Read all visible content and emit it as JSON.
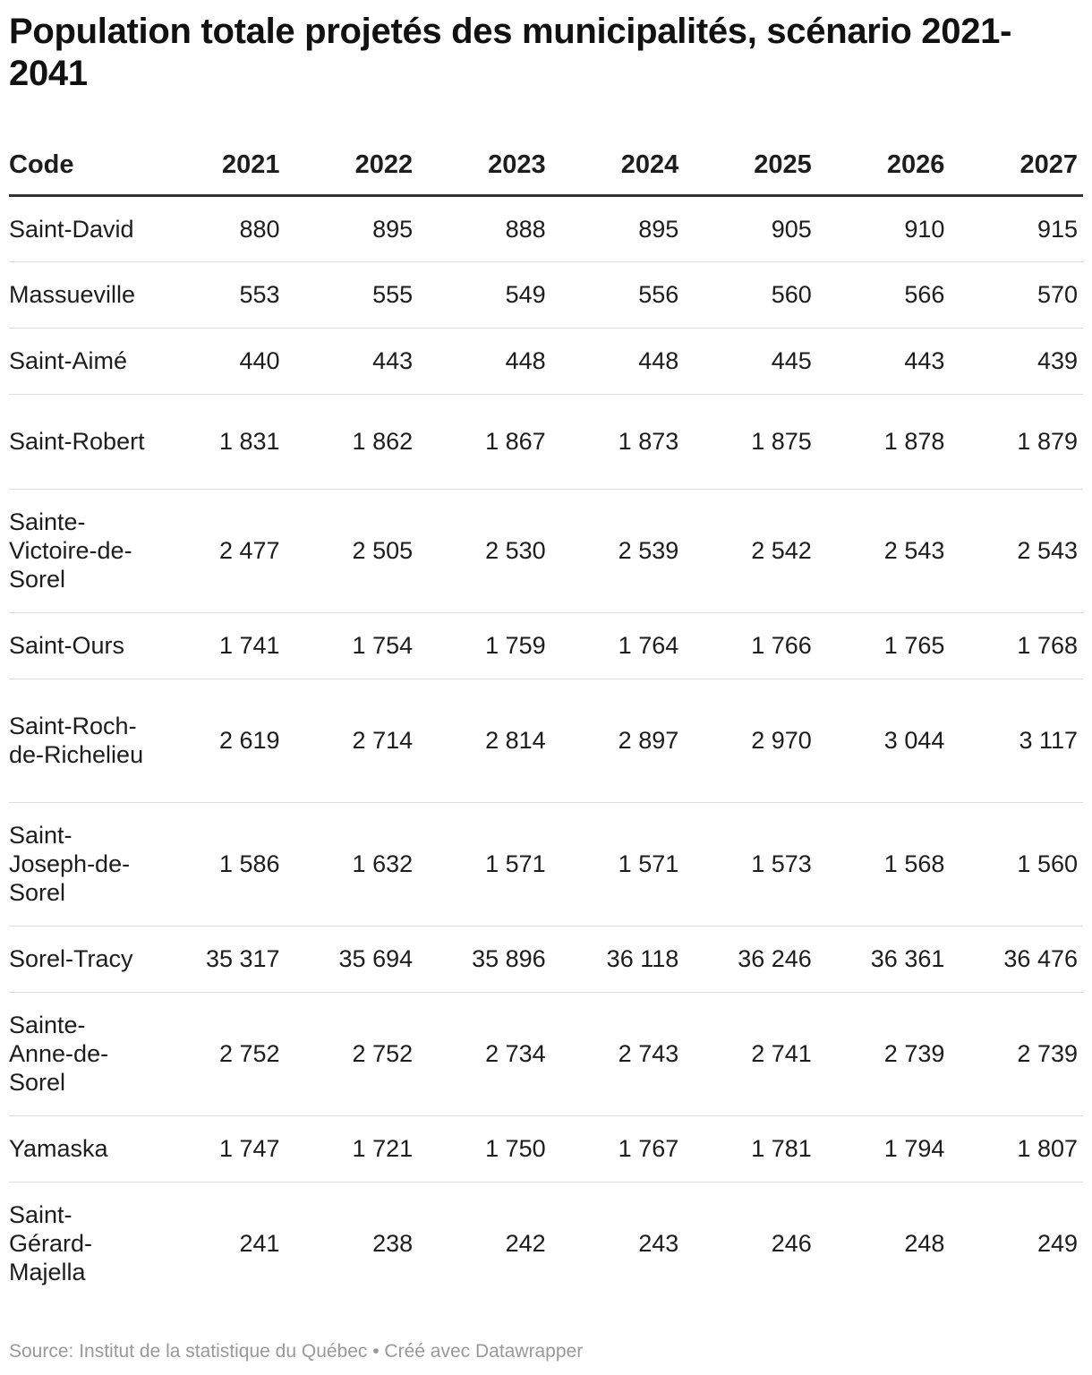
{
  "title": "Population totale projetés des municipalités, scénario 2021-2041",
  "chart_data": {
    "type": "table",
    "title": "Population totale projetés des municipalités, scénario 2021-2041",
    "columns": [
      "Code",
      "2021",
      "2022",
      "2023",
      "2024",
      "2025",
      "2026",
      "2027"
    ],
    "rows": [
      {
        "name": "Saint-David",
        "lines": 1,
        "values": [
          "880",
          "895",
          "888",
          "895",
          "905",
          "910",
          "915"
        ]
      },
      {
        "name": "Massueville",
        "lines": 1,
        "values": [
          "553",
          "555",
          "549",
          "556",
          "560",
          "566",
          "570"
        ]
      },
      {
        "name": "Saint-Aimé",
        "lines": 1,
        "values": [
          "440",
          "443",
          "448",
          "448",
          "445",
          "443",
          "439"
        ]
      },
      {
        "name": "Saint-Robert",
        "lines": 2,
        "values": [
          "1 831",
          "1 862",
          "1 867",
          "1 873",
          "1 875",
          "1 878",
          "1 879"
        ]
      },
      {
        "name": "Sainte-Victoire-de-Sorel",
        "lines": 3,
        "values": [
          "2 477",
          "2 505",
          "2 530",
          "2 539",
          "2 542",
          "2 543",
          "2 543"
        ]
      },
      {
        "name": "Saint-Ours",
        "lines": 1,
        "values": [
          "1 741",
          "1 754",
          "1 759",
          "1 764",
          "1 766",
          "1 765",
          "1 768"
        ]
      },
      {
        "name": "Saint-Roch-de-Richelieu",
        "lines": 3,
        "values": [
          "2 619",
          "2 714",
          "2 814",
          "2 897",
          "2 970",
          "3 044",
          "3 117"
        ]
      },
      {
        "name": "Saint-Joseph-de-Sorel",
        "lines": 3,
        "values": [
          "1 586",
          "1 632",
          "1 571",
          "1 571",
          "1 573",
          "1 568",
          "1 560"
        ]
      },
      {
        "name": "Sorel-Tracy",
        "lines": 1,
        "values": [
          "35 317",
          "35 694",
          "35 896",
          "36 118",
          "36 246",
          "36 361",
          "36 476"
        ]
      },
      {
        "name": "Sainte-Anne-de-Sorel",
        "lines": 3,
        "values": [
          "2 752",
          "2 752",
          "2 734",
          "2 743",
          "2 741",
          "2 739",
          "2 739"
        ]
      },
      {
        "name": "Yamaska",
        "lines": 1,
        "values": [
          "1 747",
          "1 721",
          "1 750",
          "1 767",
          "1 781",
          "1 794",
          "1 807"
        ]
      },
      {
        "name": "Saint-Gérard-Majella",
        "lines": 3,
        "values": [
          "241",
          "238",
          "242",
          "243",
          "246",
          "248",
          "249"
        ]
      }
    ]
  },
  "footer": {
    "source": "Source: Institut de la statistique du Québec • Créé avec Datawrapper"
  }
}
